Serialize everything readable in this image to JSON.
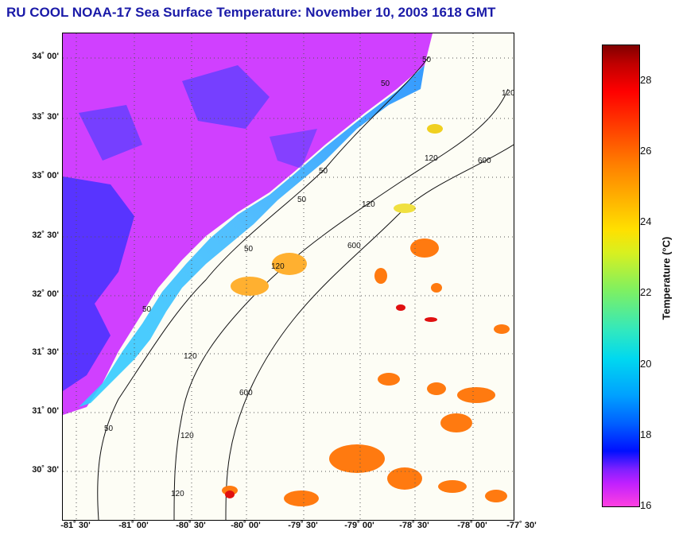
{
  "title": "RU COOL  NOAA-17  Sea Surface Temperature:  November 10, 2003 1618 GMT",
  "map": {
    "lat_ticks": [
      "34˚ 00'",
      "33˚ 30'",
      "33˚ 00'",
      "32˚ 30'",
      "32˚ 00'",
      "31˚ 30'",
      "31˚ 00'",
      "30˚ 30'"
    ],
    "lon_ticks": [
      "-81˚ 30'",
      "-81˚ 00'",
      "-80˚ 30'",
      "-80˚ 00'",
      "-79˚ 30'",
      "-79˚ 00'",
      "-78˚ 30'",
      "-78˚ 00'",
      "-77˚ 30'"
    ],
    "isobath_labels": [
      "50",
      "50",
      "50",
      "50",
      "50",
      "50",
      "50",
      "120",
      "120",
      "120",
      "120",
      "120",
      "120",
      "120",
      "600",
      "600",
      "600"
    ],
    "colors": {
      "land": "#c030ff",
      "cold_water": "#0040ff",
      "shelf_water": "#30c8ff",
      "warm_patch": "#ff7010",
      "clear_ocean": "#fdfdf5"
    }
  },
  "colorbar": {
    "ticks": [
      "28",
      "26",
      "24",
      "22",
      "20",
      "18",
      "16"
    ],
    "label": "Temperature (°C)",
    "range": [
      16,
      29
    ]
  }
}
